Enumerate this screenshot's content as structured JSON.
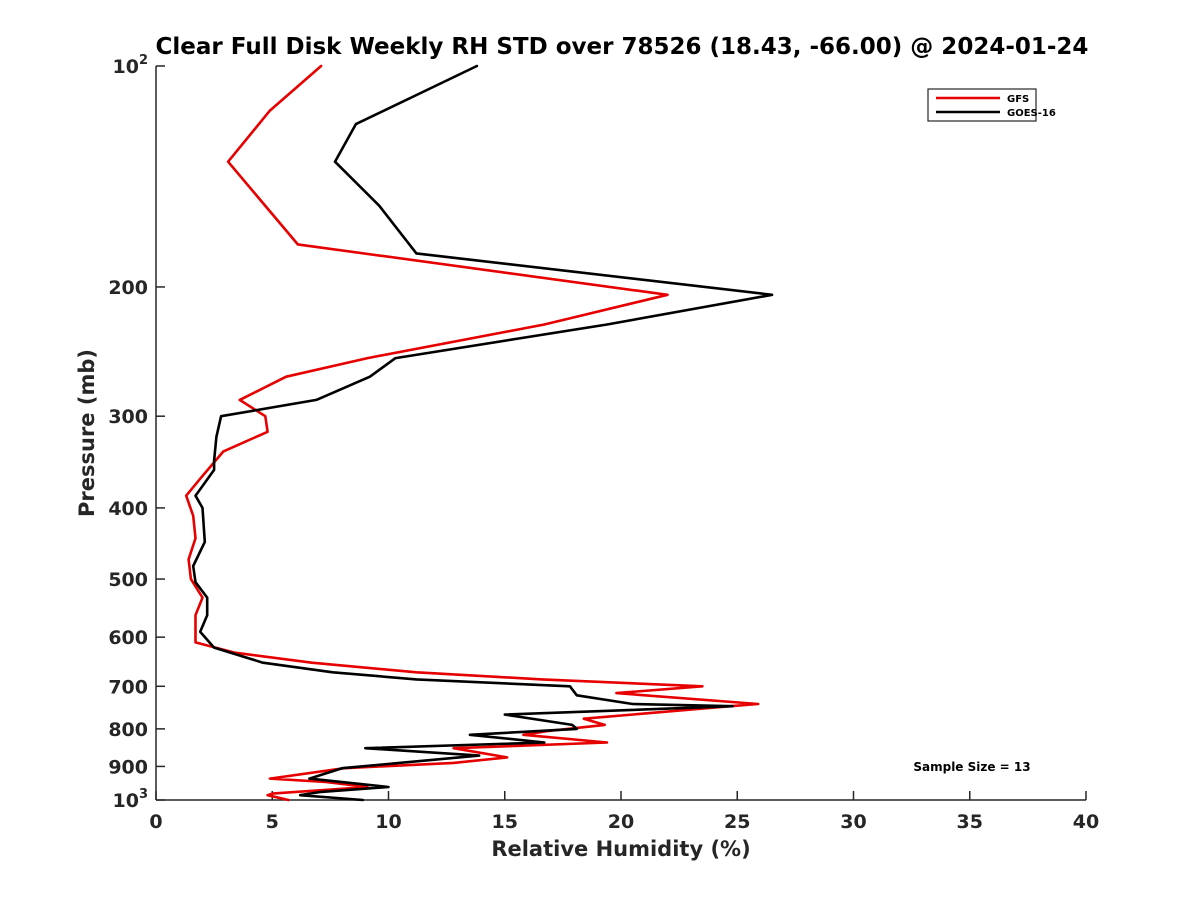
{
  "chart_data": {
    "type": "line",
    "title": "Clear Full Disk Weekly RH STD over 78526 (18.43, -66.00) @ 2024-01-24",
    "xlabel": "Relative Humidity (%)",
    "ylabel": "Pressure (mb)",
    "xlim": [
      0,
      40
    ],
    "ylim": [
      100,
      1000
    ],
    "y_scale": "log",
    "y_reversed": true,
    "x_ticks": [
      0,
      5,
      10,
      15,
      20,
      25,
      30,
      35,
      40
    ],
    "x_tick_labels": [
      "0",
      "5",
      "10",
      "15",
      "20",
      "25",
      "30",
      "35",
      "40"
    ],
    "y_ticks": [
      100,
      200,
      300,
      400,
      500,
      600,
      700,
      800,
      900,
      1000
    ],
    "y_tick_labels": [
      {
        "base": "10",
        "exp": "2"
      },
      {
        "base": "200",
        "exp": ""
      },
      {
        "base": "300",
        "exp": ""
      },
      {
        "base": "400",
        "exp": ""
      },
      {
        "base": "500",
        "exp": ""
      },
      {
        "base": "600",
        "exp": ""
      },
      {
        "base": "700",
        "exp": ""
      },
      {
        "base": "800",
        "exp": ""
      },
      {
        "base": "900",
        "exp": ""
      },
      {
        "base": "10",
        "exp": "3"
      }
    ],
    "grid": false,
    "legend_position": "top-right",
    "annotation": "Sample Size = 13",
    "series": [
      {
        "name": "GFS",
        "color": "#e60000",
        "points": [
          [
            7.1,
            100
          ],
          [
            4.9,
            115
          ],
          [
            3.1,
            135
          ],
          [
            6.1,
            175
          ],
          [
            22.0,
            205
          ],
          [
            16.7,
            225
          ],
          [
            9.1,
            250
          ],
          [
            5.6,
            265
          ],
          [
            3.6,
            285
          ],
          [
            4.7,
            300
          ],
          [
            4.8,
            315
          ],
          [
            2.9,
            335
          ],
          [
            1.9,
            365
          ],
          [
            1.3,
            385
          ],
          [
            1.6,
            410
          ],
          [
            1.7,
            440
          ],
          [
            1.4,
            470
          ],
          [
            1.5,
            500
          ],
          [
            2.0,
            530
          ],
          [
            1.7,
            560
          ],
          [
            1.7,
            590
          ],
          [
            1.7,
            610
          ],
          [
            3.4,
            630
          ],
          [
            6.7,
            650
          ],
          [
            11.2,
            670
          ],
          [
            16.6,
            685
          ],
          [
            23.5,
            700
          ],
          [
            19.8,
            715
          ],
          [
            25.9,
            740
          ],
          [
            24.7,
            745
          ],
          [
            18.4,
            775
          ],
          [
            19.3,
            790
          ],
          [
            16.9,
            805
          ],
          [
            15.8,
            815
          ],
          [
            19.4,
            835
          ],
          [
            12.8,
            850
          ],
          [
            15.1,
            875
          ],
          [
            12.8,
            890
          ],
          [
            8.1,
            905
          ],
          [
            4.9,
            935
          ],
          [
            7.3,
            945
          ],
          [
            9.1,
            960
          ],
          [
            5.0,
            980
          ],
          [
            4.8,
            985
          ],
          [
            5.7,
            1000
          ]
        ]
      },
      {
        "name": "GOES-16",
        "color": "#000000",
        "points": [
          [
            13.8,
            100
          ],
          [
            8.6,
            120
          ],
          [
            7.7,
            135
          ],
          [
            9.6,
            155
          ],
          [
            11.2,
            180
          ],
          [
            26.5,
            205
          ],
          [
            19.4,
            225
          ],
          [
            10.3,
            250
          ],
          [
            9.2,
            265
          ],
          [
            6.9,
            285
          ],
          [
            2.8,
            300
          ],
          [
            2.6,
            320
          ],
          [
            2.5,
            345
          ],
          [
            2.5,
            355
          ],
          [
            1.7,
            385
          ],
          [
            2.0,
            400
          ],
          [
            2.1,
            445
          ],
          [
            1.6,
            480
          ],
          [
            1.7,
            505
          ],
          [
            2.2,
            530
          ],
          [
            2.2,
            560
          ],
          [
            1.9,
            590
          ],
          [
            2.5,
            620
          ],
          [
            4.6,
            650
          ],
          [
            7.6,
            670
          ],
          [
            11.2,
            685
          ],
          [
            17.8,
            700
          ],
          [
            18.1,
            720
          ],
          [
            20.5,
            740
          ],
          [
            24.8,
            745
          ],
          [
            15.0,
            765
          ],
          [
            17.9,
            790
          ],
          [
            18.1,
            800
          ],
          [
            13.5,
            815
          ],
          [
            16.7,
            835
          ],
          [
            9.0,
            850
          ],
          [
            13.9,
            870
          ],
          [
            8.0,
            905
          ],
          [
            6.6,
            935
          ],
          [
            10.0,
            960
          ],
          [
            7.1,
            975
          ],
          [
            6.2,
            985
          ],
          [
            8.9,
            1000
          ]
        ]
      }
    ]
  }
}
